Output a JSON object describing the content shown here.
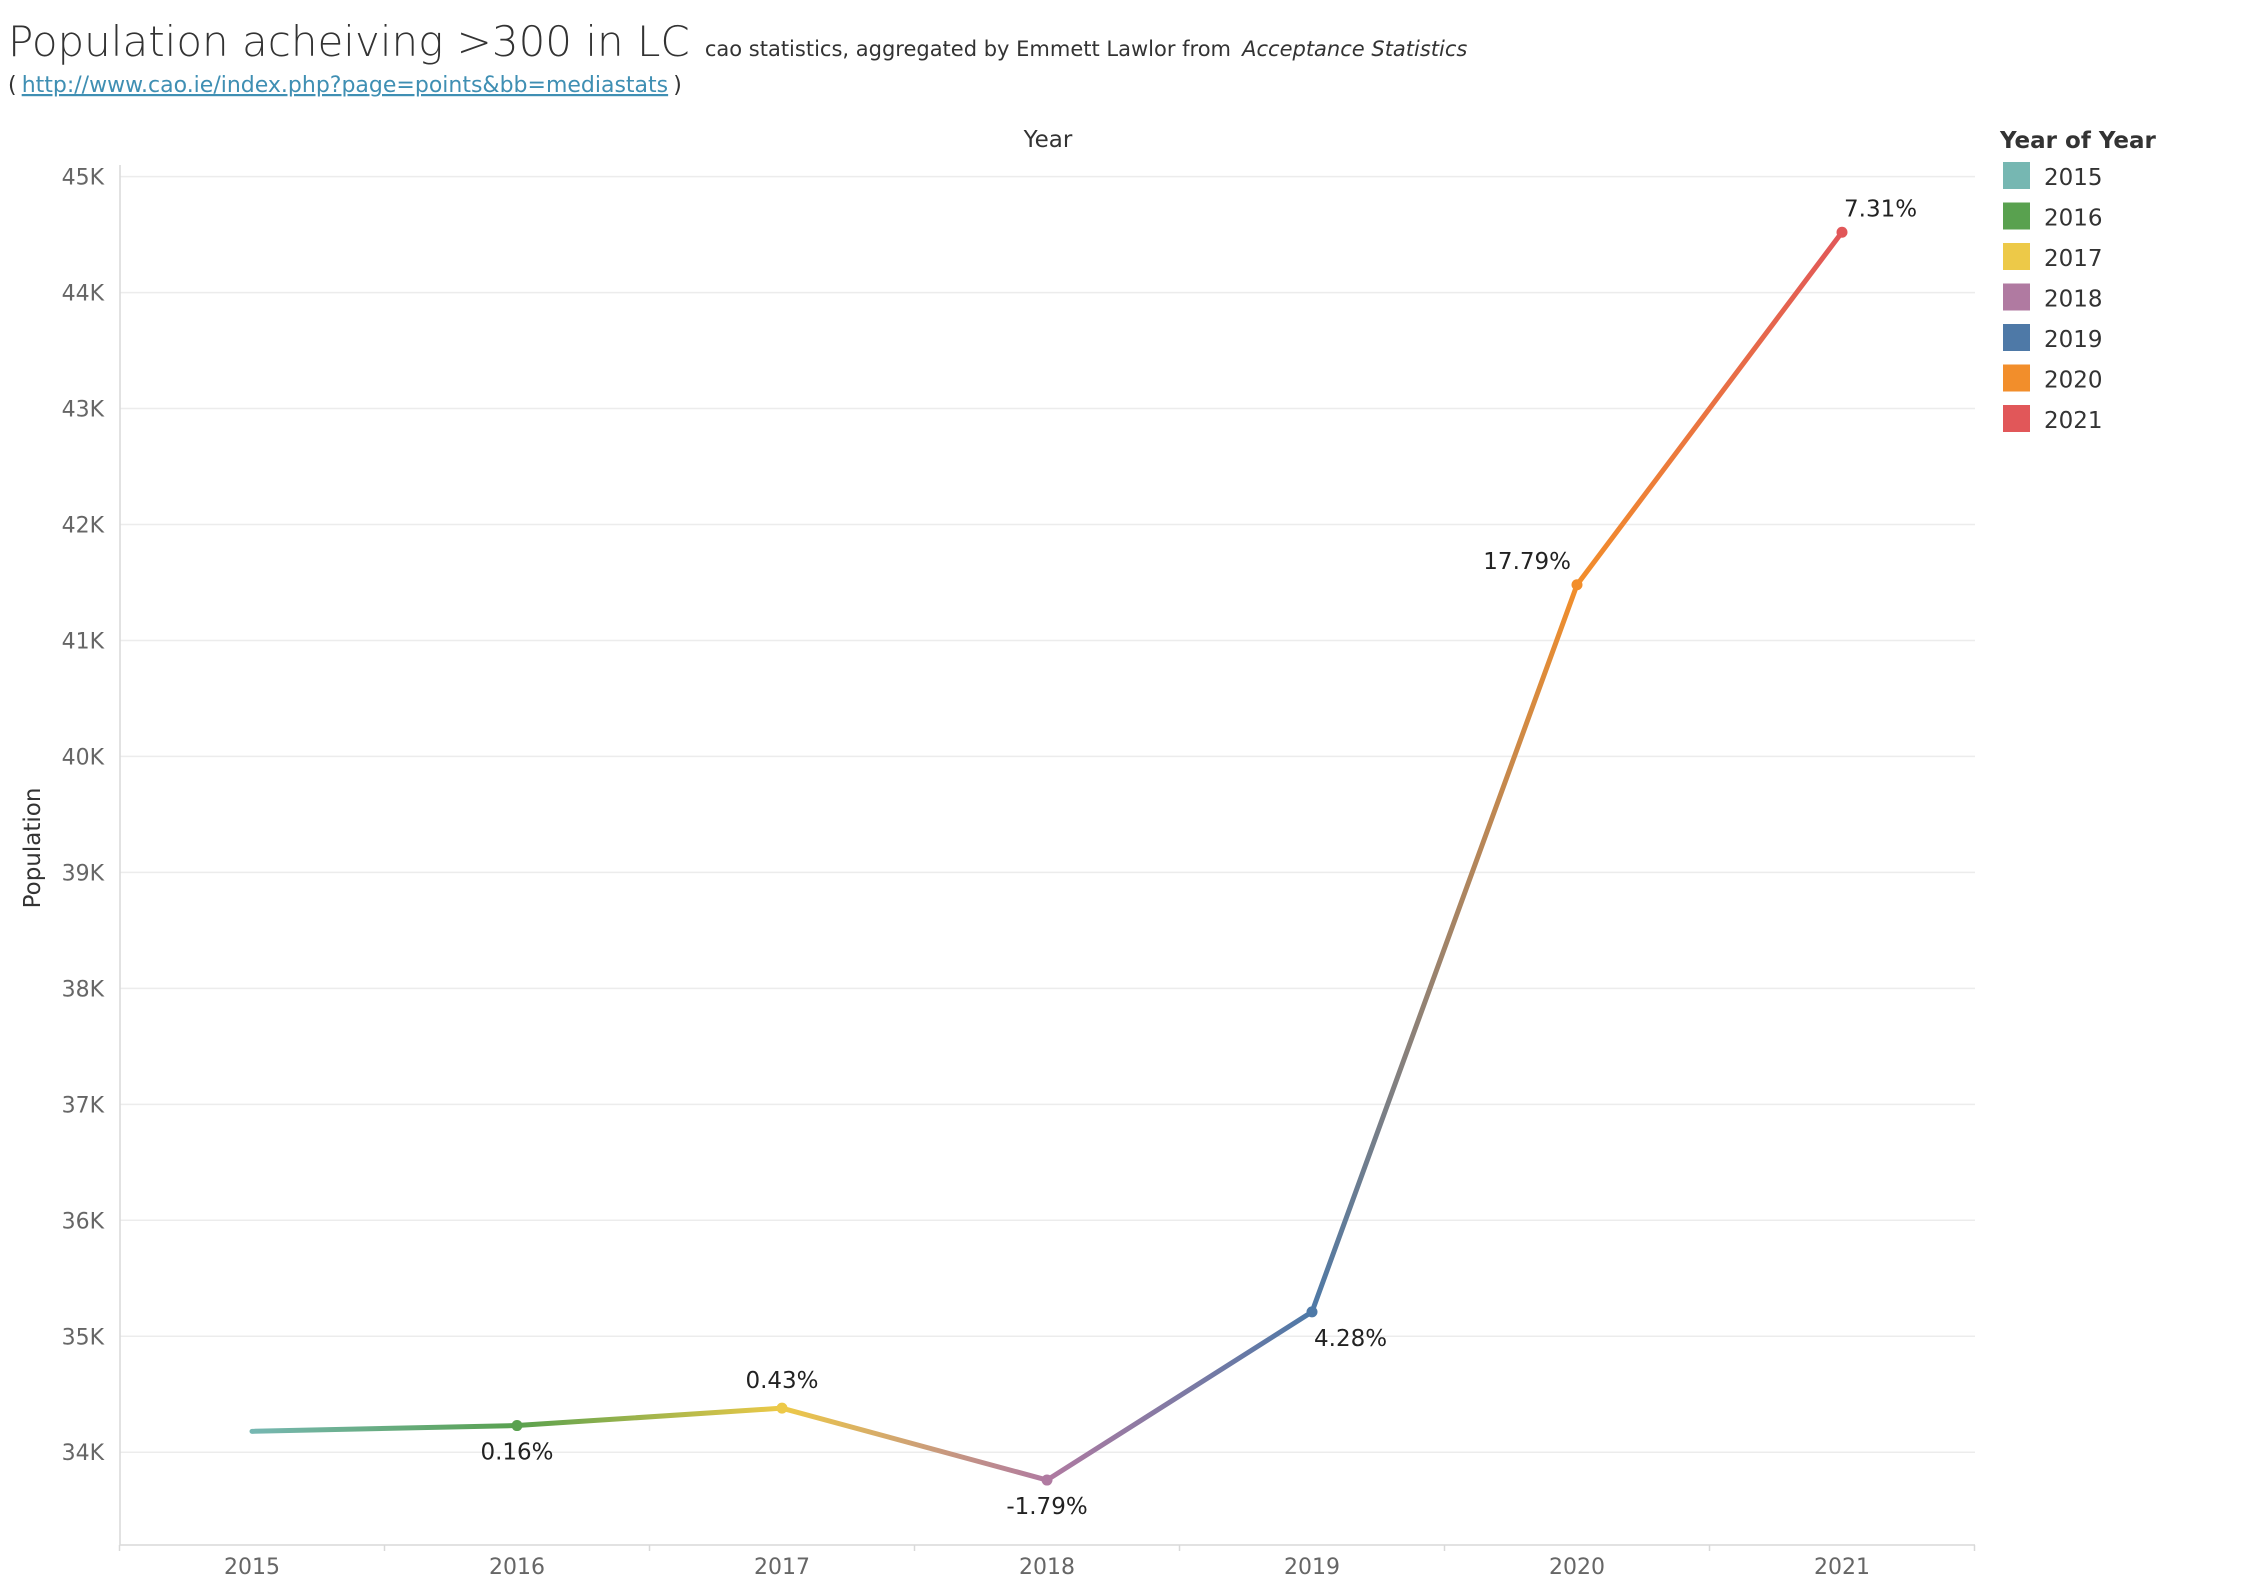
{
  "title": {
    "main": "Population acheiving >300 in LC",
    "sub_prefix": "cao statistics, aggregated by Emmett Lawlor from",
    "sub_italic": "Acceptance Statistics",
    "open_paren": "(",
    "link": "http://www.cao.ie/index.php?page=points&bb=mediastats",
    "close_paren": ")"
  },
  "legend": {
    "title": "Year of Year",
    "items": [
      {
        "label": "2015",
        "color": "#76b7b2"
      },
      {
        "label": "2016",
        "color": "#59a14f"
      },
      {
        "label": "2017",
        "color": "#edc948"
      },
      {
        "label": "2018",
        "color": "#b07aa1"
      },
      {
        "label": "2019",
        "color": "#4e79a7"
      },
      {
        "label": "2020",
        "color": "#f28e2b"
      },
      {
        "label": "2021",
        "color": "#e15759"
      }
    ]
  },
  "chart_data": {
    "type": "line",
    "xlabel": "Year",
    "ylabel": "Population",
    "x": [
      "2015",
      "2016",
      "2017",
      "2018",
      "2019",
      "2020",
      "2021"
    ],
    "values": [
      34180,
      34230,
      34380,
      33760,
      35210,
      41480,
      44520
    ],
    "point_labels": [
      "",
      "0.16%",
      "0.43%",
      "-1.79%",
      "4.28%",
      "17.79%",
      "7.31%"
    ],
    "label_positions": [
      "none",
      "below",
      "above",
      "below",
      "below",
      "left",
      "above"
    ],
    "ylim": [
      33200,
      45100
    ],
    "yticks": [
      34000,
      35000,
      36000,
      37000,
      38000,
      39000,
      40000,
      41000,
      42000,
      43000,
      44000,
      45000
    ],
    "ytick_labels": [
      "34K",
      "35K",
      "36K",
      "37K",
      "38K",
      "39K",
      "40K",
      "41K",
      "42K",
      "43K",
      "44K",
      "45K"
    ],
    "grid": true,
    "legend_position": "right"
  }
}
